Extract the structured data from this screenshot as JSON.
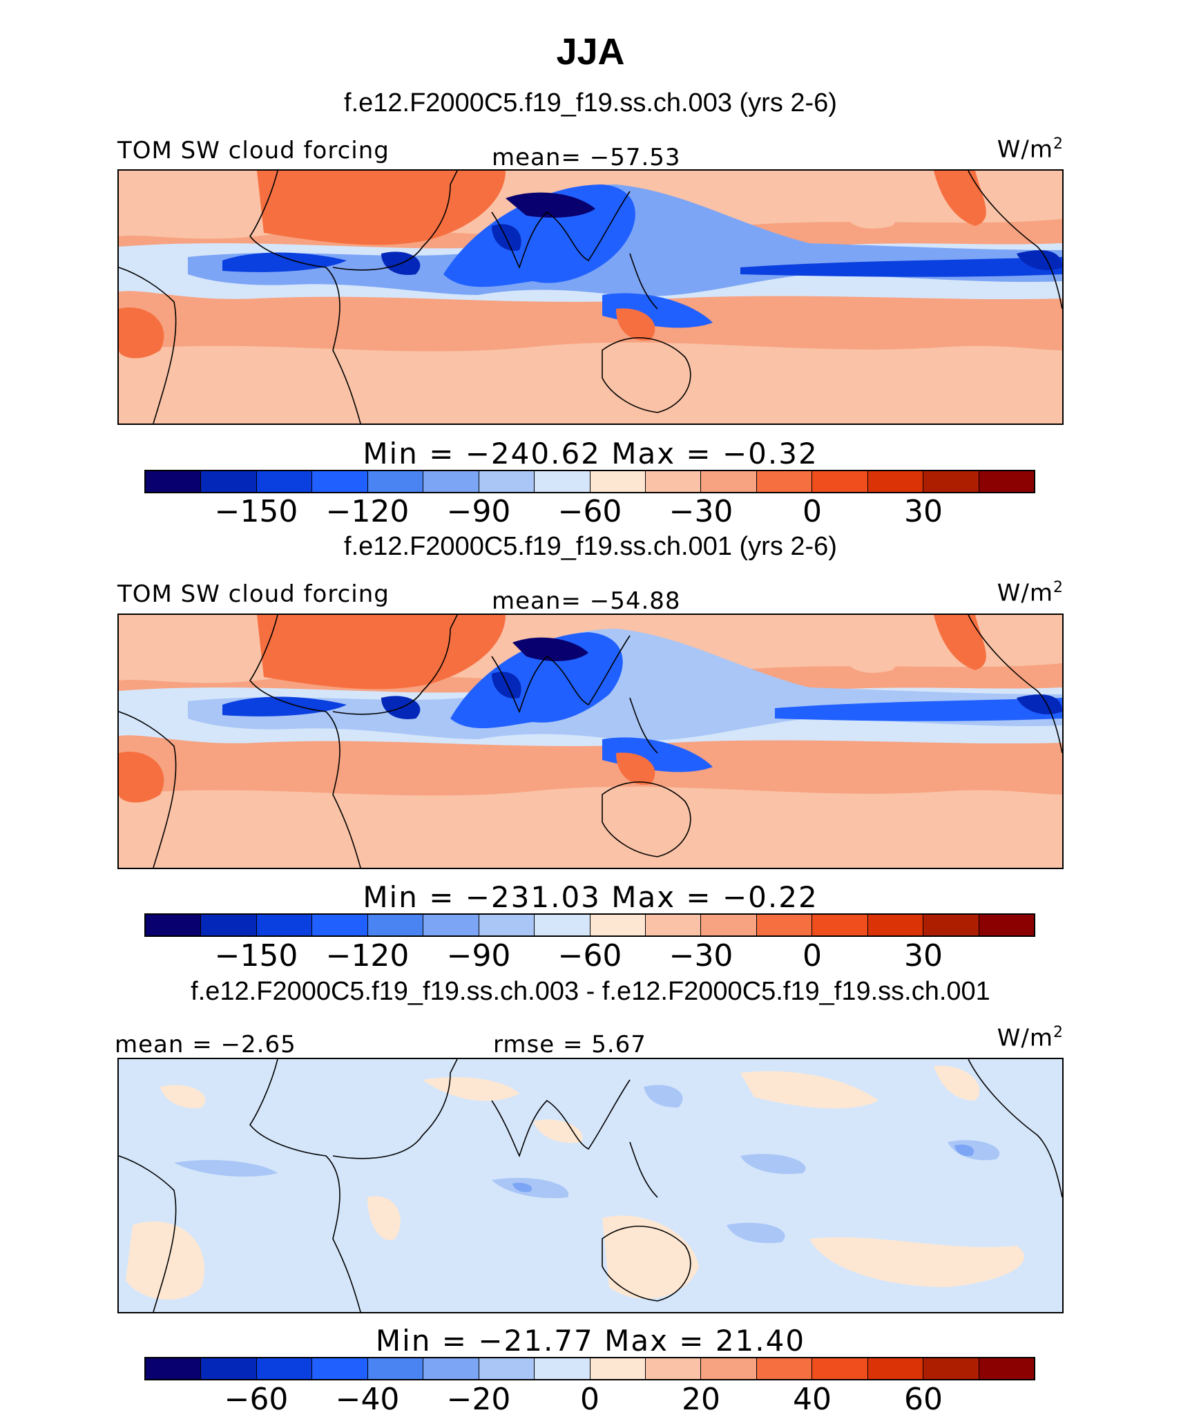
{
  "figure": {
    "title": "JJA",
    "colors": [
      "#08006e",
      "#0327b8",
      "#0a3fe0",
      "#2060ff",
      "#4a84f2",
      "#7da5f5",
      "#a9c6f7",
      "#d5e6fb",
      "#fde7d2",
      "#fac2a6",
      "#f7a280",
      "#f66f40",
      "#f04e1c",
      "#dc3306",
      "#ad1d00",
      "#8b0000"
    ]
  },
  "panels": [
    {
      "subtitle": "f.e12.F2000C5.f19_f19.ss.ch.003 (yrs 2-6)",
      "left_label": "TOM SW cloud forcing",
      "center_label": "mean= −57.53",
      "unit_base": "W/m",
      "unit_exp": "2",
      "stats": "Min  =  −240.62  Max  =   −0.32",
      "ticks": [
        "−150",
        "−120",
        "−90",
        "−60",
        "−30",
        "0",
        "30"
      ]
    },
    {
      "subtitle": "f.e12.F2000C5.f19_f19.ss.ch.001 (yrs 2-6)",
      "left_label": "TOM SW cloud forcing",
      "center_label": "mean= −54.88",
      "unit_base": "W/m",
      "unit_exp": "2",
      "stats": "Min  =  −231.03  Max  =   −0.22",
      "ticks": [
        "−150",
        "−120",
        "−90",
        "−60",
        "−30",
        "0",
        "30"
      ]
    },
    {
      "subtitle": "f.e12.F2000C5.f19_f19.ss.ch.003 - f.e12.F2000C5.f19_f19.ss.ch.001",
      "left_label": "mean =   −2.65",
      "center_label": "rmse =     5.67",
      "unit_base": "W/m",
      "unit_exp": "2",
      "stats": "Min  =  −21.77  Max  =   21.40",
      "ticks": [
        "−60",
        "−40",
        "−20",
        "0",
        "20",
        "40",
        "60"
      ]
    }
  ]
}
